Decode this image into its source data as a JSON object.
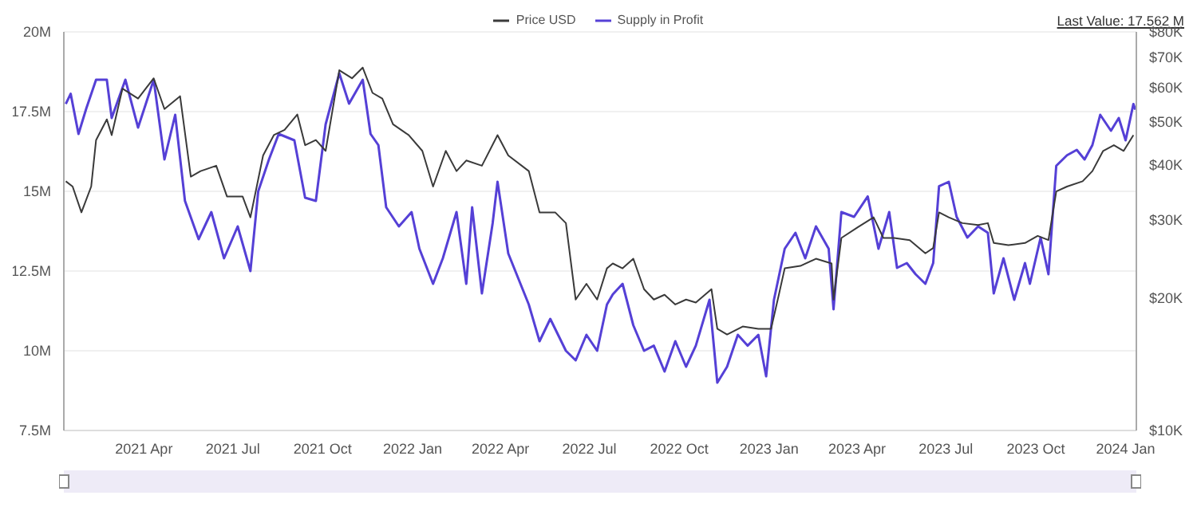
{
  "chart_data": {
    "type": "line",
    "legend": "top",
    "grid": "y",
    "log": "y2",
    "annotations": [
      "Last Value: 17.562 M"
    ],
    "xlim": [
      "2021-01-09",
      "2024-01-12"
    ],
    "xticks": [
      {
        "value": "2021-04-01",
        "label": "2021 Apr"
      },
      {
        "value": "2021-07-01",
        "label": "2021 Jul"
      },
      {
        "value": "2021-10-01",
        "label": "2021 Oct"
      },
      {
        "value": "2022-01-01",
        "label": "2022 Jan"
      },
      {
        "value": "2022-04-01",
        "label": "2022 Apr"
      },
      {
        "value": "2022-07-01",
        "label": "2022 Jul"
      },
      {
        "value": "2022-10-01",
        "label": "2022 Oct"
      },
      {
        "value": "2023-01-01",
        "label": "2023 Jan"
      },
      {
        "value": "2023-04-01",
        "label": "2023 Apr"
      },
      {
        "value": "2023-07-01",
        "label": "2023 Jul"
      },
      {
        "value": "2023-10-01",
        "label": "2023 Oct"
      },
      {
        "value": "2024-01-01",
        "label": "2024 Jan"
      }
    ],
    "ylim": [
      7.5,
      20
    ],
    "yticks": [
      {
        "value": 7.5,
        "label": "7.5M"
      },
      {
        "value": 10,
        "label": "10M"
      },
      {
        "value": 12.5,
        "label": "12.5M"
      },
      {
        "value": 15,
        "label": "15M"
      },
      {
        "value": 17.5,
        "label": "17.5M"
      },
      {
        "value": 20,
        "label": "20M"
      }
    ],
    "y2lim": [
      10000,
      80000
    ],
    "y2ticks": [
      {
        "value": 10000,
        "label": "$10K"
      },
      {
        "value": 20000,
        "label": "$20K"
      },
      {
        "value": 30000,
        "label": "$30K"
      },
      {
        "value": 40000,
        "label": "$40K"
      },
      {
        "value": 50000,
        "label": "$50K"
      },
      {
        "value": 60000,
        "label": "$60K"
      },
      {
        "value": 70000,
        "label": "$70K"
      },
      {
        "value": 80000,
        "label": "$80K"
      }
    ],
    "series": [
      {
        "name": "Price USD",
        "color": "#3a3a3a",
        "axis": "y2",
        "x": [
          "2021-01-11",
          "2021-01-18",
          "2021-01-27",
          "2021-02-06",
          "2021-02-11",
          "2021-02-22",
          "2021-02-27",
          "2021-03-10",
          "2021-03-26",
          "2021-04-11",
          "2021-04-22",
          "2021-05-08",
          "2021-05-19",
          "2021-05-29",
          "2021-06-14",
          "2021-06-25",
          "2021-07-11",
          "2021-07-19",
          "2021-08-01",
          "2021-08-12",
          "2021-08-23",
          "2021-09-05",
          "2021-09-13",
          "2021-09-24",
          "2021-10-04",
          "2021-10-18",
          "2021-10-31",
          "2021-11-11",
          "2021-11-21",
          "2021-12-01",
          "2021-12-12",
          "2021-12-28",
          "2022-01-11",
          "2022-01-22",
          "2022-02-04",
          "2022-02-15",
          "2022-02-25",
          "2022-03-13",
          "2022-03-29",
          "2022-04-09",
          "2022-04-30",
          "2022-05-11",
          "2022-05-27",
          "2022-06-07",
          "2022-06-17",
          "2022-06-28",
          "2022-07-09",
          "2022-07-19",
          "2022-07-25",
          "2022-08-04",
          "2022-08-15",
          "2022-08-26",
          "2022-09-05",
          "2022-09-16",
          "2022-09-27",
          "2022-10-08",
          "2022-10-18",
          "2022-11-03",
          "2022-11-09",
          "2022-11-19",
          "2022-12-05",
          "2022-12-21",
          "2023-01-03",
          "2023-01-11",
          "2023-01-17",
          "2023-02-02",
          "2023-02-18",
          "2023-03-06",
          "2023-03-08",
          "2023-03-16",
          "2023-04-02",
          "2023-04-18",
          "2023-04-28",
          "2023-05-09",
          "2023-05-25",
          "2023-06-10",
          "2023-06-18",
          "2023-06-24",
          "2023-07-04",
          "2023-07-18",
          "2023-08-03",
          "2023-08-13",
          "2023-08-19",
          "2023-09-03",
          "2023-09-20",
          "2023-10-03",
          "2023-10-14",
          "2023-10-22",
          "2023-11-02",
          "2023-11-18",
          "2023-11-28",
          "2023-12-09",
          "2023-12-20",
          "2023-12-30",
          "2024-01-09"
        ],
        "values": [
          36700,
          35700,
          31200,
          35700,
          45500,
          50700,
          46700,
          59500,
          56500,
          62800,
          53500,
          57200,
          37600,
          38700,
          39800,
          33900,
          33900,
          30400,
          42000,
          46700,
          48000,
          52000,
          44300,
          45500,
          43000,
          65500,
          62800,
          66400,
          58200,
          56500,
          49400,
          46700,
          43000,
          35700,
          43000,
          38700,
          40900,
          39800,
          46700,
          42000,
          38700,
          31200,
          31200,
          29500,
          19800,
          21500,
          19800,
          23300,
          23900,
          23300,
          24500,
          20900,
          19800,
          20300,
          19300,
          19800,
          19500,
          20900,
          17000,
          16500,
          17200,
          17000,
          17000,
          20300,
          23300,
          23600,
          24500,
          23900,
          19800,
          27300,
          28900,
          30400,
          27300,
          27300,
          27000,
          25200,
          25900,
          31200,
          30400,
          29500,
          29200,
          29500,
          26600,
          26300,
          26600,
          27600,
          27000,
          34800,
          35700,
          36700,
          38700,
          43000,
          44300,
          43000,
          46700
        ]
      },
      {
        "name": "Supply in Profit",
        "color": "#5540d6",
        "x": [
          "2021-01-11",
          "2021-01-16",
          "2021-01-24",
          "2021-02-01",
          "2021-02-11",
          "2021-02-22",
          "2021-02-27",
          "2021-03-13",
          "2021-03-26",
          "2021-04-11",
          "2021-04-22",
          "2021-05-03",
          "2021-05-13",
          "2021-05-27",
          "2021-06-09",
          "2021-06-22",
          "2021-07-06",
          "2021-07-19",
          "2021-07-27",
          "2021-08-07",
          "2021-08-17",
          "2021-09-02",
          "2021-09-13",
          "2021-09-24",
          "2021-10-04",
          "2021-10-18",
          "2021-10-28",
          "2021-11-11",
          "2021-11-19",
          "2021-11-27",
          "2021-12-05",
          "2021-12-18",
          "2021-12-31",
          "2022-01-08",
          "2022-01-22",
          "2022-02-01",
          "2022-02-15",
          "2022-02-25",
          "2022-03-03",
          "2022-03-13",
          "2022-03-24",
          "2022-03-29",
          "2022-04-09",
          "2022-04-30",
          "2022-05-11",
          "2022-05-22",
          "2022-06-07",
          "2022-06-17",
          "2022-06-28",
          "2022-07-09",
          "2022-07-19",
          "2022-07-25",
          "2022-08-04",
          "2022-08-15",
          "2022-08-26",
          "2022-09-05",
          "2022-09-16",
          "2022-09-27",
          "2022-10-08",
          "2022-10-18",
          "2022-11-01",
          "2022-11-09",
          "2022-11-19",
          "2022-11-30",
          "2022-12-10",
          "2022-12-21",
          "2022-12-29",
          "2023-01-06",
          "2023-01-17",
          "2023-01-28",
          "2023-02-07",
          "2023-02-18",
          "2023-03-03",
          "2023-03-08",
          "2023-03-16",
          "2023-03-29",
          "2023-04-12",
          "2023-04-23",
          "2023-05-04",
          "2023-05-12",
          "2023-05-22",
          "2023-05-31",
          "2023-06-10",
          "2023-06-18",
          "2023-06-24",
          "2023-07-04",
          "2023-07-12",
          "2023-07-23",
          "2023-08-03",
          "2023-08-13",
          "2023-08-19",
          "2023-08-29",
          "2023-09-09",
          "2023-09-20",
          "2023-09-25",
          "2023-10-06",
          "2023-10-14",
          "2023-10-22",
          "2023-11-02",
          "2023-11-12",
          "2023-11-20",
          "2023-11-28",
          "2023-12-06",
          "2023-12-17",
          "2023-12-25",
          "2024-01-01",
          "2024-01-09",
          "2024-01-11"
        ],
        "values": [
          17.74,
          18.06,
          16.8,
          17.6,
          18.5,
          18.5,
          17.3,
          18.5,
          17.0,
          18.5,
          16.0,
          17.4,
          14.7,
          13.5,
          14.35,
          12.9,
          13.9,
          12.5,
          15.0,
          16.0,
          16.8,
          16.6,
          14.8,
          14.7,
          17.1,
          18.7,
          17.75,
          18.5,
          16.8,
          16.45,
          14.5,
          13.9,
          14.35,
          13.2,
          12.1,
          12.9,
          14.35,
          12.1,
          14.5,
          11.8,
          14.0,
          15.3,
          13.05,
          11.45,
          10.3,
          11.0,
          10.0,
          9.7,
          10.5,
          10.0,
          11.45,
          11.77,
          12.1,
          10.8,
          10.0,
          10.16,
          9.35,
          10.3,
          9.5,
          10.16,
          11.6,
          9.0,
          9.5,
          10.5,
          10.16,
          10.5,
          9.2,
          11.6,
          13.2,
          13.7,
          12.9,
          13.9,
          13.2,
          11.3,
          14.35,
          14.2,
          14.84,
          13.2,
          14.35,
          12.6,
          12.75,
          12.4,
          12.1,
          12.75,
          15.16,
          15.3,
          14.2,
          13.55,
          13.9,
          13.7,
          11.8,
          12.9,
          11.6,
          12.75,
          12.1,
          13.55,
          12.4,
          15.8,
          16.13,
          16.3,
          16.0,
          16.45,
          17.4,
          16.9,
          17.3,
          16.6,
          17.74,
          17.56
        ]
      }
    ]
  }
}
